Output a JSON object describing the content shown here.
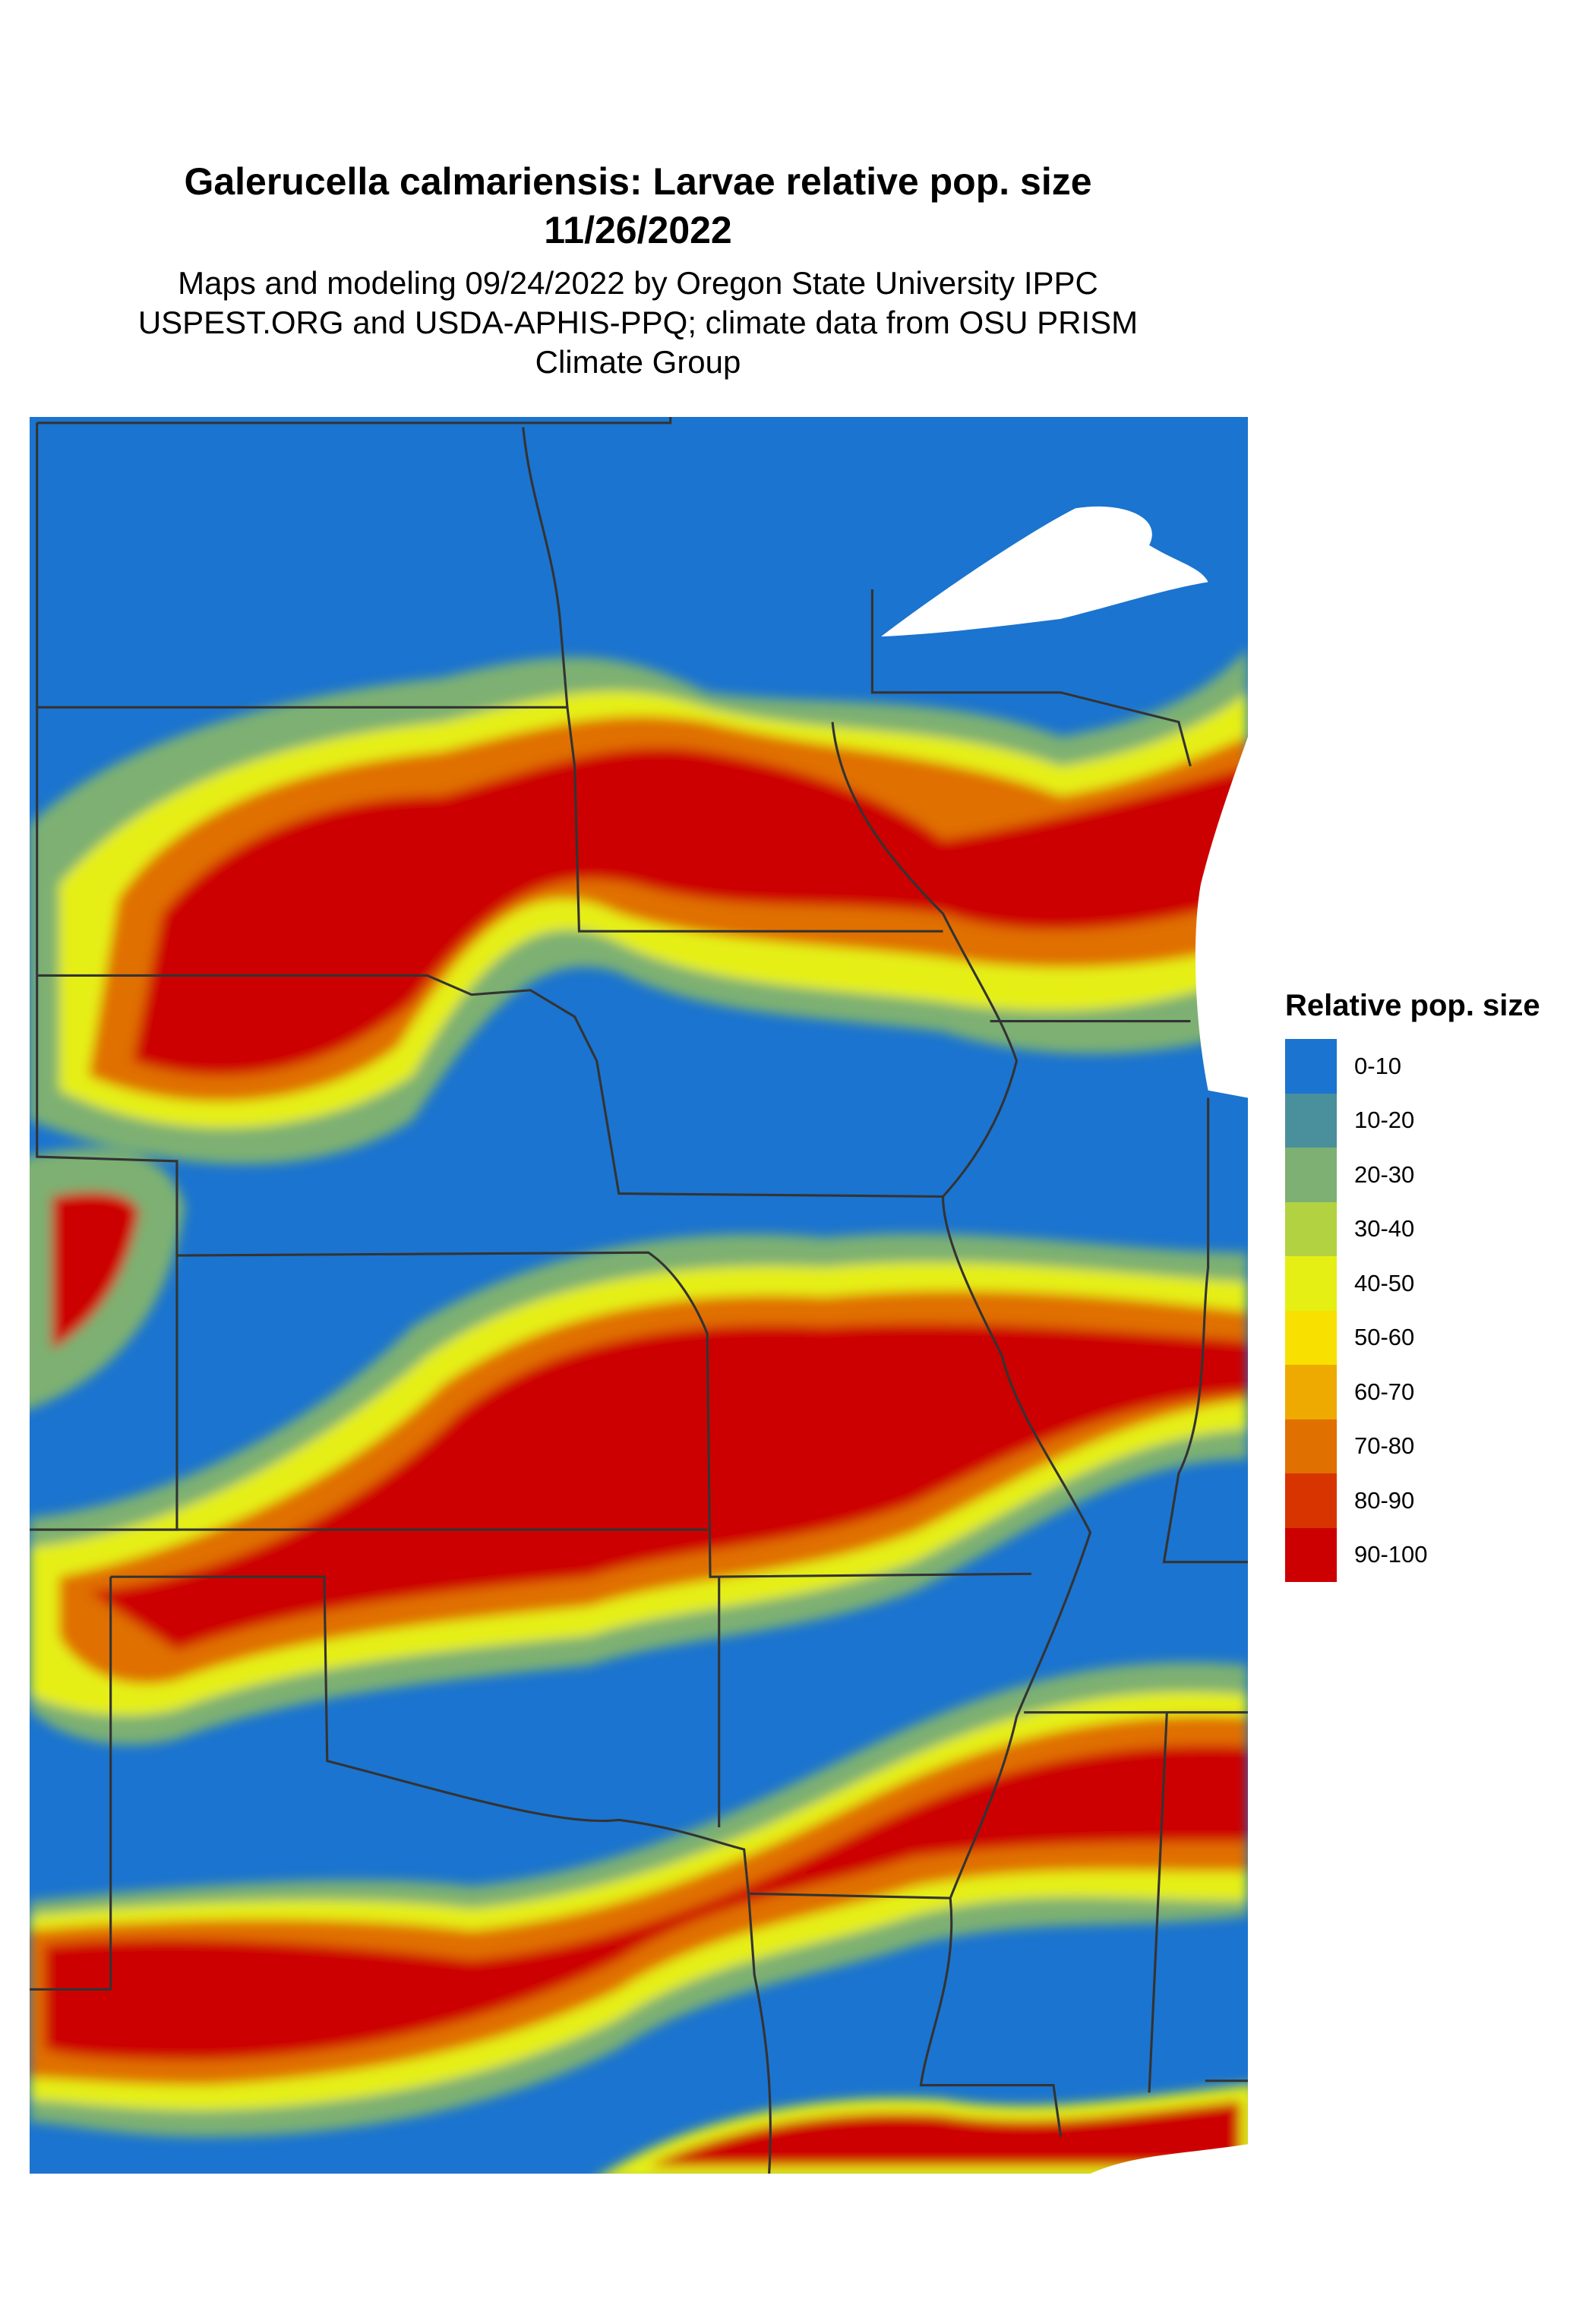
{
  "title": "Galerucella calmariensis: Larvae relative pop. size",
  "date": "11/26/2022",
  "subtitle_lines": [
    "Maps and modeling 09/24/2022 by Oregon State University IPPC",
    "USPEST.ORG and USDA-APHIS-PPQ; climate data from OSU PRISM",
    "Climate Group"
  ],
  "chart_data": {
    "type": "heatmap",
    "title": "Galerucella calmariensis: Larvae relative pop. size",
    "legend_title": "Relative pop. size",
    "legend_placement": "right",
    "categories": [
      "0-10",
      "10-20",
      "20-30",
      "30-40",
      "40-50",
      "50-60",
      "60-70",
      "70-80",
      "80-90",
      "90-100"
    ],
    "colors": [
      "#1b74cf",
      "#4a8f9c",
      "#7db072",
      "#b2d242",
      "#e5ef14",
      "#f8e000",
      "#eeaa00",
      "#e07000",
      "#d83400",
      "#cc0000"
    ],
    "background_color": "#1b74cf",
    "border_color": "#333333",
    "water_color": "#ffffff"
  }
}
